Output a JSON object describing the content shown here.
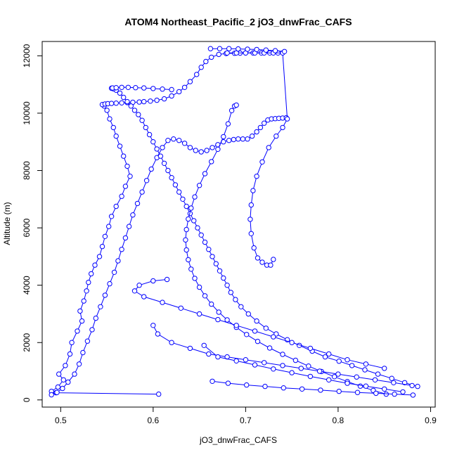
{
  "chart_data": {
    "type": "line",
    "title": "ATOM4 Northeast_Pacific_2 jO3_dnwFrac_CAFS",
    "xlabel": "jO3_dnwFrac_CAFS",
    "ylabel": "Altitude (m)",
    "xlim": [
      0.48,
      0.905
    ],
    "ylim": [
      -250,
      12500
    ],
    "xticks": [
      0.5,
      0.6,
      0.7,
      0.8,
      0.9
    ],
    "xtick_labels": [
      "0.5",
      "0.6",
      "0.7",
      "0.8",
      "0.9"
    ],
    "yticks": [
      0,
      2000,
      4000,
      6000,
      8000,
      10000,
      12000
    ],
    "ytick_labels": [
      "0",
      "2000",
      "4000",
      "6000",
      "8000",
      "10000",
      "12000"
    ],
    "grid": false,
    "markers": "open-circle",
    "color": "#0000ff",
    "series": [
      {
        "x": [
          0.606,
          0.495,
          0.49,
          0.497,
          0.503,
          0.498,
          0.505,
          0.51,
          0.512,
          0.518,
          0.523,
          0.521,
          0.525,
          0.528,
          0.53,
          0.533,
          0.537,
          0.542,
          0.545,
          0.548,
          0.552,
          0.555,
          0.56,
          0.566,
          0.57,
          0.575,
          0.572,
          0.568,
          0.564,
          0.56,
          0.557,
          0.553,
          0.55,
          0.547,
          0.545,
          0.548,
          0.551,
          0.555,
          0.56,
          0.566,
          0.572,
          0.578,
          0.585,
          0.59,
          0.597,
          0.604,
          0.612,
          0.62,
          0.628,
          0.634,
          0.64,
          0.647,
          0.652,
          0.657,
          0.663,
          0.671,
          0.679,
          0.688,
          0.694,
          0.7,
          0.708,
          0.717,
          0.726,
          0.735
        ],
        "y": [
          200,
          250,
          300,
          450,
          700,
          900,
          1200,
          1600,
          2000,
          2400,
          2750,
          3100,
          3450,
          3800,
          4100,
          4400,
          4700,
          5000,
          5350,
          5700,
          6050,
          6400,
          6750,
          7100,
          7450,
          7800,
          8150,
          8500,
          8850,
          9200,
          9500,
          9800,
          10100,
          10250,
          10300,
          10320,
          10330,
          10340,
          10350,
          10360,
          10370,
          10380,
          10390,
          10400,
          10420,
          10450,
          10500,
          10600,
          10750,
          10900,
          11100,
          11350,
          11600,
          11800,
          11950,
          12050,
          12080,
          12090,
          12095,
          12100,
          12100,
          12100,
          12100,
          12100
        ]
      },
      {
        "x": [
          0.49,
          0.496,
          0.502,
          0.508,
          0.515,
          0.52,
          0.524,
          0.529,
          0.534,
          0.538,
          0.543,
          0.548,
          0.553,
          0.558,
          0.562,
          0.566,
          0.57,
          0.574,
          0.578,
          0.583,
          0.588,
          0.593,
          0.598,
          0.604,
          0.61,
          0.616,
          0.622,
          0.628,
          0.634,
          0.64,
          0.646,
          0.652,
          0.658,
          0.664,
          0.67,
          0.676,
          0.682,
          0.687,
          0.692,
          0.697,
          0.702,
          0.707,
          0.712,
          0.716,
          0.72,
          0.724,
          0.728,
          0.732,
          0.736,
          0.74,
          0.744
        ],
        "y": [
          180,
          260,
          400,
          620,
          900,
          1250,
          1650,
          2050,
          2450,
          2850,
          3250,
          3650,
          4050,
          4450,
          4850,
          5250,
          5650,
          6050,
          6450,
          6850,
          7250,
          7650,
          8050,
          8450,
          8800,
          9050,
          9100,
          9050,
          8950,
          8800,
          8700,
          8650,
          8700,
          8800,
          8900,
          9000,
          9050,
          9080,
          9100,
          9100,
          9100,
          9200,
          9350,
          9500,
          9650,
          9760,
          9800,
          9810,
          9820,
          9830,
          9840
        ]
      },
      {
        "x": [
          0.886,
          0.872,
          0.858,
          0.843,
          0.829,
          0.815,
          0.801,
          0.786,
          0.772,
          0.758,
          0.745,
          0.733,
          0.722,
          0.712,
          0.703,
          0.695,
          0.689,
          0.684,
          0.68,
          0.676,
          0.672,
          0.668,
          0.664,
          0.66,
          0.656,
          0.652,
          0.648,
          0.644,
          0.64,
          0.636,
          0.632,
          0.628,
          0.624,
          0.62,
          0.616,
          0.612,
          0.608,
          0.604,
          0.6,
          0.596,
          0.592,
          0.588,
          0.584,
          0.58,
          0.576,
          0.572,
          0.568,
          0.564,
          0.56,
          0.557,
          0.555,
          0.556,
          0.56,
          0.566,
          0.573,
          0.581,
          0.59,
          0.6,
          0.61,
          0.62
        ],
        "y": [
          470,
          600,
          750,
          900,
          1050,
          1200,
          1350,
          1500,
          1700,
          1900,
          2100,
          2300,
          2500,
          2750,
          3000,
          3250,
          3500,
          3750,
          4000,
          4250,
          4500,
          4750,
          5000,
          5250,
          5500,
          5750,
          6000,
          6250,
          6500,
          6750,
          7000,
          7250,
          7500,
          7750,
          8000,
          8250,
          8500,
          8750,
          9000,
          9250,
          9500,
          9750,
          9950,
          10100,
          10250,
          10400,
          10550,
          10700,
          10800,
          10850,
          10870,
          10880,
          10890,
          10900,
          10900,
          10890,
          10880,
          10860,
          10840,
          10820
        ]
      },
      {
        "x": [
          0.852,
          0.838,
          0.824,
          0.81,
          0.796,
          0.782,
          0.768,
          0.754,
          0.74,
          0.726,
          0.713,
          0.701,
          0.69,
          0.68,
          0.671,
          0.663,
          0.656,
          0.65,
          0.645,
          0.641,
          0.638,
          0.636,
          0.635,
          0.636,
          0.638,
          0.641,
          0.645,
          0.65,
          0.656,
          0.663,
          0.67,
          0.676,
          0.681,
          0.685,
          0.688,
          0.69
        ],
        "y": [
          200,
          330,
          480,
          640,
          810,
          990,
          1180,
          1380,
          1590,
          1810,
          2040,
          2280,
          2530,
          2790,
          3060,
          3340,
          3630,
          3930,
          4240,
          4560,
          4890,
          5230,
          5580,
          5940,
          6310,
          6690,
          7080,
          7480,
          7890,
          8310,
          8740,
          9180,
          9630,
          10090,
          10250,
          10280
        ]
      },
      {
        "x": [
          0.85,
          0.83,
          0.81,
          0.79,
          0.77,
          0.75,
          0.73,
          0.71,
          0.69,
          0.67,
          0.65,
          0.63,
          0.61,
          0.59,
          0.58,
          0.585,
          0.6,
          0.615
        ],
        "y": [
          1100,
          1250,
          1400,
          1600,
          1800,
          2000,
          2200,
          2400,
          2600,
          2800,
          3000,
          3200,
          3400,
          3600,
          3800,
          4000,
          4150,
          4200
        ]
      },
      {
        "x": [
          0.88,
          0.86,
          0.84,
          0.82,
          0.8,
          0.78,
          0.76,
          0.74,
          0.72,
          0.7,
          0.68,
          0.66,
          0.64,
          0.62,
          0.605,
          0.6
        ],
        "y": [
          500,
          600,
          700,
          800,
          900,
          1000,
          1100,
          1200,
          1300,
          1400,
          1500,
          1600,
          1800,
          2000,
          2300,
          2600
        ]
      },
      {
        "x": [
          0.87,
          0.85,
          0.83,
          0.81,
          0.79,
          0.77,
          0.75,
          0.73,
          0.71,
          0.69,
          0.67,
          0.655
        ],
        "y": [
          280,
          380,
          480,
          580,
          700,
          820,
          950,
          1080,
          1220,
          1360,
          1500,
          1900
        ]
      },
      {
        "x": [
          0.881,
          0.861,
          0.841,
          0.821,
          0.801,
          0.781,
          0.761,
          0.741,
          0.721,
          0.701,
          0.681,
          0.664
        ],
        "y": [
          170,
          200,
          230,
          260,
          300,
          340,
          380,
          420,
          470,
          520,
          580,
          650
        ]
      },
      {
        "x": [
          0.68,
          0.69,
          0.7,
          0.71,
          0.72,
          0.73,
          0.74,
          0.745,
          0.74,
          0.733,
          0.725,
          0.718,
          0.712,
          0.708,
          0.706,
          0.705,
          0.706,
          0.709,
          0.713,
          0.718,
          0.723,
          0.727,
          0.73
        ],
        "y": [
          12100,
          12100,
          12100,
          12100,
          12100,
          12100,
          12100,
          9800,
          9500,
          9200,
          8800,
          8300,
          7800,
          7300,
          6800,
          6300,
          5800,
          5300,
          4950,
          4800,
          4700,
          4700,
          4900
        ]
      },
      {
        "x": [
          0.662,
          0.672,
          0.682,
          0.692,
          0.702,
          0.712,
          0.722,
          0.732,
          0.742
        ],
        "y": [
          12250,
          12250,
          12250,
          12240,
          12230,
          12220,
          12200,
          12180,
          12150
        ]
      }
    ]
  }
}
